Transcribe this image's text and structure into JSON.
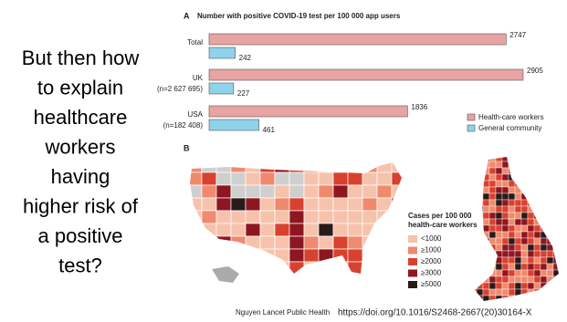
{
  "slide": {
    "question": [
      "But then how",
      "to explain",
      "healthcare",
      "workers",
      "having",
      "higher risk of",
      "a positive",
      "test?"
    ],
    "footer_source": "Nguyen Lancet Public Health",
    "footer_doi": "https://doi.org/10.1016/S2468-2667(20)30164-X"
  },
  "chart_data": {
    "type": "bar",
    "orientation": "horizontal",
    "panel": "A",
    "title": "Number with positive COVID-19 test per 100 000 app users",
    "categories": [
      "Total",
      "UK",
      "USA"
    ],
    "category_notes": [
      null,
      "(n=2 627 695)",
      "(n=182 408)"
    ],
    "series": [
      {
        "name": "Health-care workers",
        "color": "#e8a3a3",
        "values": [
          2747,
          2905,
          1836
        ]
      },
      {
        "name": "General community",
        "color": "#8fd3ea",
        "values": [
          242,
          227,
          461
        ]
      }
    ]
  },
  "map": {
    "panel": "B",
    "legend_title": [
      "Cases per 100 000",
      "health-care workers"
    ],
    "legend": [
      {
        "label": "<1000",
        "color": "#f7c2ab"
      },
      {
        "label": "≥1000",
        "color": "#ef8a6e"
      },
      {
        "label": "≥2000",
        "color": "#d9412f"
      },
      {
        "label": "≥3000",
        "color": "#8e1620"
      },
      {
        "label": "≥5000",
        "color": "#2a1a1a"
      }
    ]
  }
}
